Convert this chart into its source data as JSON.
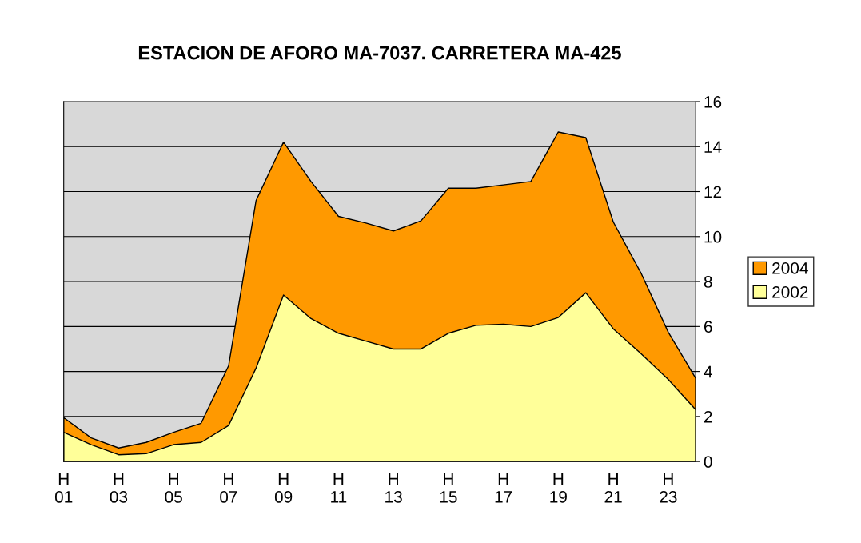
{
  "chart_data": {
    "type": "area",
    "title": "ESTACION DE AFORO MA-7037. CARRETERA MA-425",
    "categories": [
      "H\n01",
      null,
      "H\n03",
      null,
      "H\n05",
      null,
      "H\n07",
      null,
      "H\n09",
      null,
      "H\n11",
      null,
      "H\n13",
      null,
      "H\n15",
      null,
      "H\n17",
      null,
      "H\n19",
      null,
      "H\n21",
      null,
      "H\n23",
      null
    ],
    "series": [
      {
        "name": "2004",
        "color": "#ff9900",
        "values": [
          1.95,
          1.05,
          0.6,
          0.85,
          1.3,
          1.7,
          4.25,
          11.6,
          14.2,
          12.45,
          10.9,
          10.6,
          10.25,
          10.7,
          12.15,
          12.15,
          12.3,
          12.45,
          14.65,
          14.4,
          10.65,
          8.4,
          5.75,
          3.7
        ]
      },
      {
        "name": "2002",
        "color": "#ffff99",
        "values": [
          1.3,
          0.75,
          0.3,
          0.35,
          0.75,
          0.85,
          1.6,
          4.15,
          7.4,
          6.35,
          5.7,
          5.35,
          5.0,
          5.0,
          5.7,
          6.05,
          6.1,
          6.0,
          6.4,
          7.5,
          5.9,
          4.8,
          3.65,
          2.3
        ]
      }
    ],
    "ylim": [
      0,
      16
    ],
    "yticks": [
      0,
      2,
      4,
      6,
      8,
      10,
      12,
      14,
      16
    ],
    "grid": "y",
    "legend": "right"
  }
}
